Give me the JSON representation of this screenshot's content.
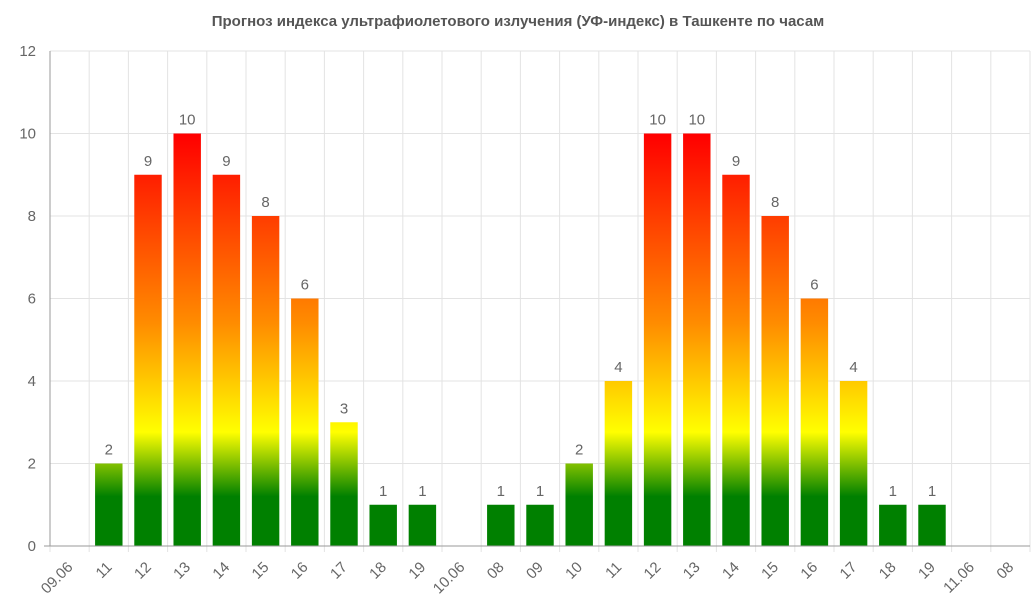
{
  "chart_data": {
    "type": "bar",
    "title": "Прогноз индекса ультрафиолетового излучения (УФ-индекс) в Ташкенте по часам",
    "xlabel": "",
    "ylabel": "",
    "ylim": [
      0,
      12
    ],
    "yticks": [
      0,
      2,
      4,
      6,
      8,
      10,
      12
    ],
    "grid": true,
    "legend": "none",
    "categories": [
      "09.06",
      "11",
      "12",
      "13",
      "14",
      "15",
      "16",
      "17",
      "18",
      "19",
      "10.06",
      "08",
      "09",
      "10",
      "11",
      "12",
      "13",
      "14",
      "15",
      "16",
      "17",
      "18",
      "19",
      "11.06",
      "08"
    ],
    "values": [
      null,
      2,
      9,
      10,
      9,
      8,
      6,
      3,
      1,
      1,
      null,
      1,
      1,
      2,
      4,
      10,
      10,
      9,
      8,
      6,
      4,
      1,
      1,
      null,
      null
    ],
    "colors": {
      "low": "#008000",
      "moderate": "#ffff00",
      "high": "#ff8c00",
      "very_high": "#ff0000"
    }
  }
}
